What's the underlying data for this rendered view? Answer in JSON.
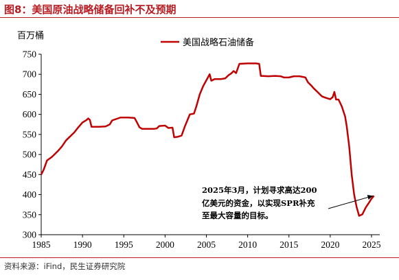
{
  "header": {
    "title": "图8：美国原油战略储备回补不及预期"
  },
  "footer": {
    "source": "资料来源：iFind，民生证券研究院"
  },
  "colors": {
    "accent": "#b81c22",
    "series": "#c00000"
  },
  "chart_data": {
    "type": "line",
    "ylabel": "百万桶",
    "xlim": [
      1985,
      2026
    ],
    "ylim": [
      300,
      750
    ],
    "x_ticks": [
      "1985",
      "1990",
      "1995",
      "2000",
      "2005",
      "2010",
      "2015",
      "2020",
      "2025"
    ],
    "y_ticks": [
      "300",
      "350",
      "400",
      "450",
      "500",
      "550",
      "600",
      "650",
      "700",
      "750"
    ],
    "legend": {
      "position": "top",
      "entries": [
        "美国战略石油储备"
      ]
    },
    "grid": false,
    "annotation": {
      "lines": [
        "2025年3月，计划寻求高达200",
        "亿美元的资金，以实现SPR补充",
        "至最大容量的目标。"
      ],
      "points_to": [
        2025.2,
        397
      ]
    },
    "series": [
      {
        "name": "美国战略石油储备",
        "points": [
          [
            1985.0,
            450
          ],
          [
            1985.3,
            462
          ],
          [
            1985.7,
            485
          ],
          [
            1986.3,
            494
          ],
          [
            1987.0,
            508
          ],
          [
            1987.5,
            520
          ],
          [
            1988.0,
            535
          ],
          [
            1988.5,
            545
          ],
          [
            1989.0,
            555
          ],
          [
            1989.5,
            568
          ],
          [
            1990.0,
            580
          ],
          [
            1990.5,
            586
          ],
          [
            1990.7,
            590
          ],
          [
            1990.9,
            586
          ],
          [
            1991.1,
            569
          ],
          [
            1992.0,
            569
          ],
          [
            1992.8,
            570
          ],
          [
            1993.3,
            575
          ],
          [
            1993.6,
            585
          ],
          [
            1994.3,
            590
          ],
          [
            1994.6,
            592
          ],
          [
            1995.5,
            592
          ],
          [
            1996.3,
            591
          ],
          [
            1996.6,
            580
          ],
          [
            1996.9,
            568
          ],
          [
            1997.2,
            564
          ],
          [
            1998.0,
            564
          ],
          [
            1998.7,
            564
          ],
          [
            1999.0,
            565
          ],
          [
            1999.3,
            571
          ],
          [
            2000.0,
            572
          ],
          [
            2000.4,
            566
          ],
          [
            2000.9,
            567
          ],
          [
            2001.1,
            543
          ],
          [
            2001.5,
            544
          ],
          [
            2002.0,
            547
          ],
          [
            2002.4,
            570
          ],
          [
            2002.8,
            590
          ],
          [
            2003.0,
            600
          ],
          [
            2003.5,
            602
          ],
          [
            2003.8,
            621
          ],
          [
            2004.2,
            650
          ],
          [
            2004.6,
            670
          ],
          [
            2005.0,
            685
          ],
          [
            2005.4,
            700
          ],
          [
            2005.6,
            684
          ],
          [
            2006.0,
            688
          ],
          [
            2006.8,
            688
          ],
          [
            2007.3,
            690
          ],
          [
            2007.7,
            698
          ],
          [
            2008.0,
            702
          ],
          [
            2008.3,
            708
          ],
          [
            2008.6,
            703
          ],
          [
            2009.0,
            726
          ],
          [
            2010.0,
            727
          ],
          [
            2011.0,
            727
          ],
          [
            2011.4,
            726
          ],
          [
            2011.6,
            696
          ],
          [
            2012.5,
            695
          ],
          [
            2013.3,
            696
          ],
          [
            2014.0,
            695
          ],
          [
            2014.4,
            692
          ],
          [
            2015.0,
            692
          ],
          [
            2015.6,
            695
          ],
          [
            2016.3,
            695
          ],
          [
            2017.0,
            692
          ],
          [
            2017.3,
            680
          ],
          [
            2017.7,
            672
          ],
          [
            2018.0,
            665
          ],
          [
            2018.5,
            655
          ],
          [
            2019.0,
            645
          ],
          [
            2019.5,
            641
          ],
          [
            2020.0,
            638
          ],
          [
            2020.3,
            643
          ],
          [
            2020.5,
            656
          ],
          [
            2020.7,
            637
          ],
          [
            2021.0,
            637
          ],
          [
            2021.4,
            620
          ],
          [
            2021.8,
            595
          ],
          [
            2022.0,
            570
          ],
          [
            2022.3,
            520
          ],
          [
            2022.6,
            450
          ],
          [
            2022.9,
            400
          ],
          [
            2023.2,
            369
          ],
          [
            2023.5,
            347
          ],
          [
            2023.9,
            351
          ],
          [
            2024.3,
            368
          ],
          [
            2024.7,
            380
          ],
          [
            2025.0,
            390
          ],
          [
            2025.3,
            397
          ]
        ]
      }
    ]
  }
}
